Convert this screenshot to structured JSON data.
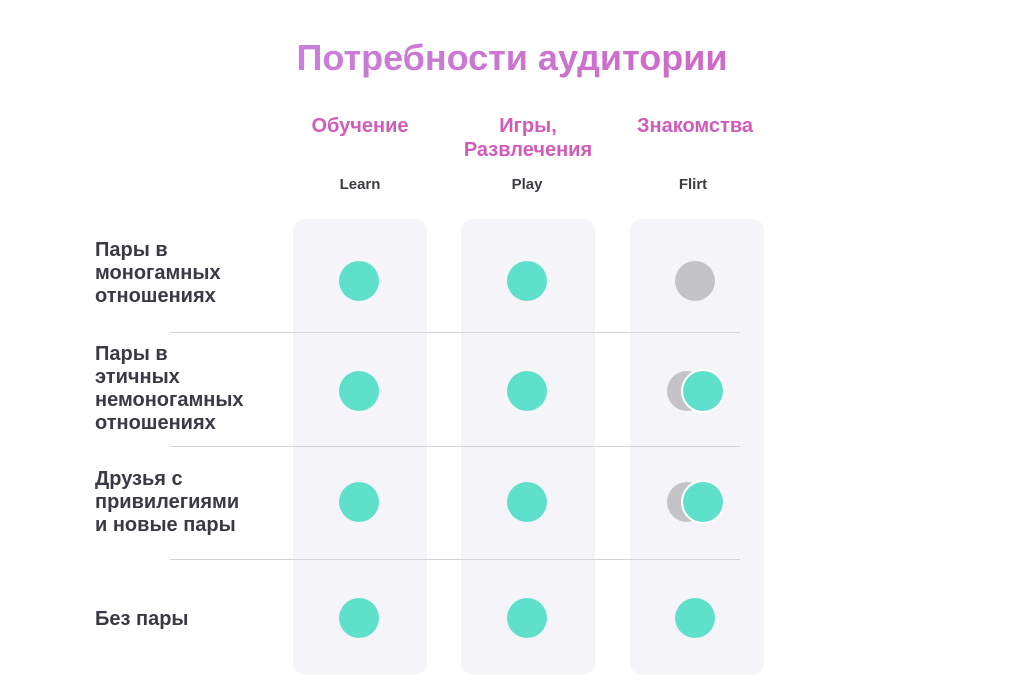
{
  "title": "Потребности аудитории",
  "columns": [
    {
      "title": "Обучение",
      "subtitle": "Learn"
    },
    {
      "title": "Игры,\nРазвлечения",
      "subtitle": "Play"
    },
    {
      "title": "Знакомства",
      "subtitle": "Flirt"
    }
  ],
  "rows": [
    {
      "label": "Пары в\nмоногамных\nотношениях",
      "marks": [
        "full",
        "full",
        "none"
      ]
    },
    {
      "label": "Пары в\nэтичных\nнемоногамных\nотношениях",
      "marks": [
        "full",
        "full",
        "partial"
      ]
    },
    {
      "label": "Друзья с\nпривилегиями\nи новые пары",
      "marks": [
        "full",
        "full",
        "partial"
      ]
    },
    {
      "label": "Без пары",
      "marks": [
        "full",
        "full",
        "full"
      ]
    }
  ],
  "colors": {
    "title_gradient_start": "#c58fe8",
    "title_gradient_end": "#d15bb9",
    "heading": "#d15bb9",
    "dot_active": "#5ee0cb",
    "dot_inactive": "#c4c4c6",
    "text": "#3a3a44"
  }
}
